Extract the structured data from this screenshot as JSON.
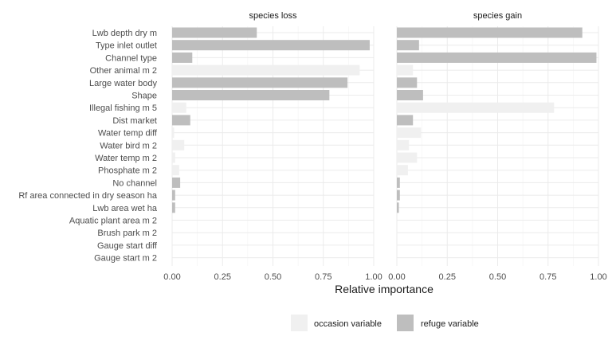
{
  "chart_data": {
    "type": "bar",
    "orientation": "horizontal",
    "xlabel": "Relative importance",
    "xlim": [
      0,
      1
    ],
    "x_ticks": [
      "0.00",
      "0.25",
      "0.50",
      "0.75",
      "1.00"
    ],
    "grid": true,
    "legend_position": "bottom",
    "categories": [
      "Lwb depth dry m",
      "Type inlet outlet",
      "Channel type",
      "Other animal m 2",
      "Large water body",
      "Shape",
      "Illegal fishing m 5",
      "Dist market",
      "Water temp diff",
      "Water bird m 2",
      "Water temp m 2",
      "Phosphate m 2",
      "No channel",
      "Rf area connected in dry season ha",
      "Lwb area wet ha",
      "Aquatic plant area m 2",
      "Brush park m 2",
      "Gauge start diff",
      "Gauge start m 2"
    ],
    "variable_type": [
      "refuge",
      "refuge",
      "refuge",
      "occasion",
      "refuge",
      "refuge",
      "occasion",
      "refuge",
      "occasion",
      "occasion",
      "occasion",
      "occasion",
      "refuge",
      "refuge",
      "refuge",
      "occasion",
      "occasion",
      "occasion",
      "occasion"
    ],
    "legend": [
      {
        "key": "occasion",
        "label": "occasion variable",
        "color": "#f0f0f0"
      },
      {
        "key": "refuge",
        "label": "refuge variable",
        "color": "#bebebe"
      }
    ],
    "panels": [
      {
        "title": "species loss",
        "values": [
          0.42,
          0.98,
          0.1,
          0.93,
          0.87,
          0.78,
          0.07,
          0.09,
          0.01,
          0.06,
          0.015,
          0.035,
          0.04,
          0.015,
          0.015,
          0.0,
          0.0,
          0.0,
          0.0
        ]
      },
      {
        "title": "species gain",
        "values": [
          0.92,
          0.11,
          0.99,
          0.08,
          0.1,
          0.13,
          0.78,
          0.08,
          0.12,
          0.06,
          0.1,
          0.055,
          0.015,
          0.015,
          0.01,
          0.0,
          0.0,
          0.0,
          0.0
        ]
      }
    ]
  }
}
